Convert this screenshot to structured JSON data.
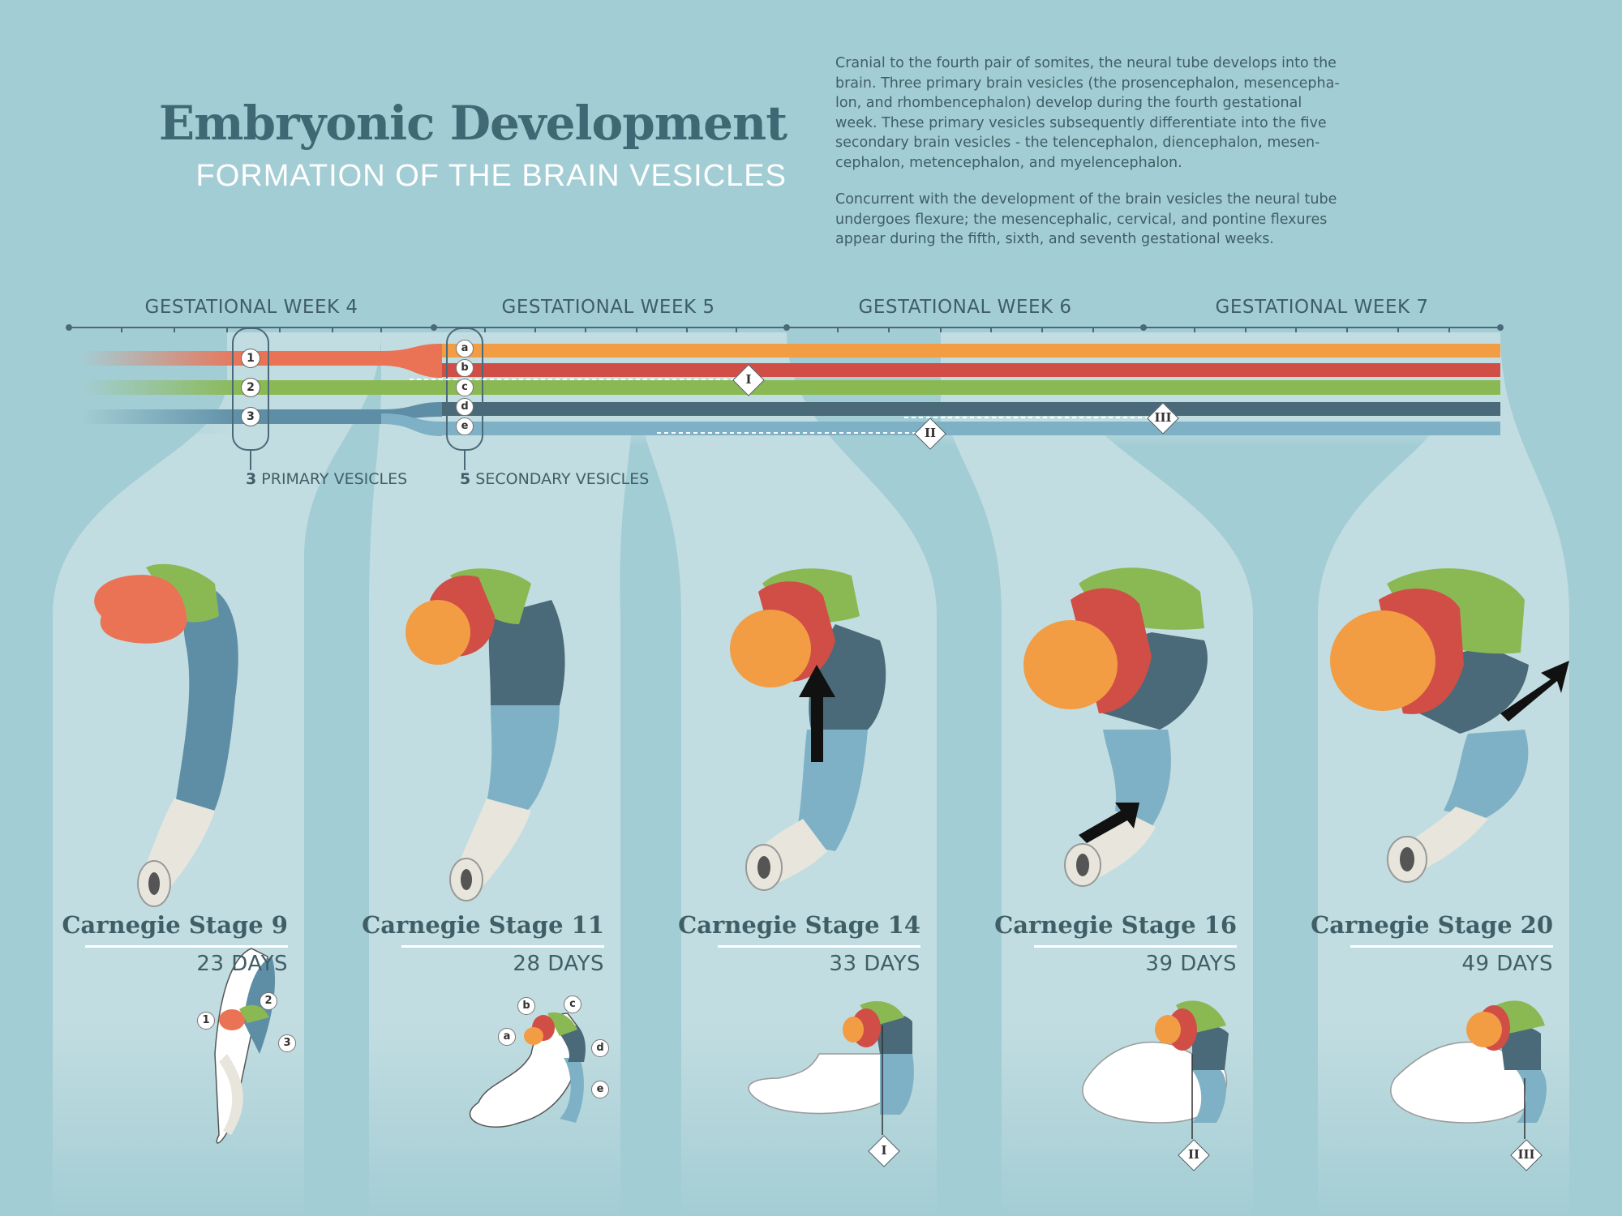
{
  "header": {
    "title": "Embryonic Development",
    "subtitle": "FORMATION OF THE BRAIN VESICLES"
  },
  "description": {
    "paragraph1_lines": [
      "Cranial to the fourth pair of somites, the neural tube develops into the",
      "brain. Three primary brain vesicles (the prosencephalon, mesencepha-",
      "lon, and rhombencephalon) develop during the fourth gestational",
      "week. These primary vesicles subsequently differentiate into the five",
      "secondary brain vesicles - the telencephalon, diencephalon, mesen-",
      "cephalon, metencephalon, and myelencephalon."
    ],
    "paragraph2_lines": [
      "Concurrent with the development of the brain vesicles the neural tube",
      "undergoes flexure; the mesencephalic, cervical, and pontine flexures",
      "appear during the fifth, sixth, and seventh gestational weeks."
    ]
  },
  "timeline": {
    "weeks": [
      "GESTATIONAL WEEK 4",
      "GESTATIONAL WEEK 5",
      "GESTATIONAL WEEK 6",
      "GESTATIONAL WEEK 7"
    ],
    "primary_markers": [
      "1",
      "2",
      "3"
    ],
    "secondary_markers": [
      "a",
      "b",
      "c",
      "d",
      "e"
    ],
    "primary_caption_count": "3",
    "primary_caption_text": "PRIMARY VESICLES",
    "secondary_caption_count": "5",
    "secondary_caption_text": "SECONDARY VESICLES",
    "flexure_markers": [
      "I",
      "II",
      "III"
    ]
  },
  "colors": {
    "background": "#a3cdd4",
    "panel": "#c2dde1",
    "prosencephalon": "#ea7356",
    "telencephalon": "#f29c43",
    "diencephalon": "#d04e45",
    "mesencephalon": "#8ab953",
    "metencephalon": "#4b6a79",
    "myelencephalon": "#7eb1c5",
    "rhombencephalon": "#5e8ea6",
    "spinal_cord": "#e8e6dc",
    "text_dark": "#3f5e66"
  },
  "stages": [
    {
      "name": "Carnegie Stage 9",
      "days": "23 DAYS",
      "labels": [
        "1",
        "2",
        "3"
      ]
    },
    {
      "name": "Carnegie Stage 11",
      "days": "28 DAYS",
      "labels": [
        "a",
        "b",
        "c",
        "d",
        "e"
      ]
    },
    {
      "name": "Carnegie Stage 14",
      "days": "33 DAYS",
      "marker": "I"
    },
    {
      "name": "Carnegie Stage 16",
      "days": "39 DAYS",
      "marker": "II"
    },
    {
      "name": "Carnegie Stage 20",
      "days": "49 DAYS",
      "marker": "III"
    }
  ]
}
